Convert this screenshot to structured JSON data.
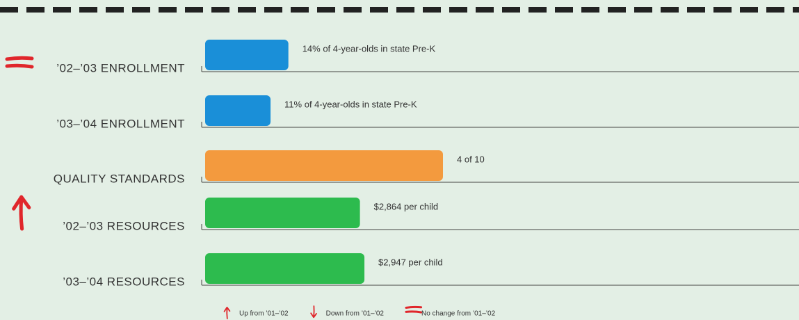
{
  "chart_data": [
    {
      "type": "bar",
      "categories": [
        "’02–’03 ENROLLMENT"
      ],
      "values": [
        14
      ],
      "value_labels": [
        "14% of 4-year-olds in state Pre-K"
      ],
      "color": "#1a8fd8",
      "xlim": [
        0,
        100
      ],
      "trend": "same"
    },
    {
      "type": "bar",
      "categories": [
        "’03–’04 ENROLLMENT"
      ],
      "values": [
        11
      ],
      "value_labels": [
        "11% of 4-year-olds in state Pre-K"
      ],
      "color": "#1a8fd8",
      "xlim": [
        0,
        100
      ]
    },
    {
      "type": "bar",
      "categories": [
        "QUALITY STANDARDS"
      ],
      "values": [
        4
      ],
      "value_labels": [
        "4 of 10"
      ],
      "color": "#f39a3e",
      "xlim": [
        0,
        10
      ]
    },
    {
      "type": "bar",
      "categories": [
        "’02–’03 RESOURCES"
      ],
      "values": [
        2864
      ],
      "value_labels": [
        "$2,864 per child"
      ],
      "color": "#2dbb4e",
      "xlim": [
        0,
        11000
      ],
      "trend": "up"
    },
    {
      "type": "bar",
      "categories": [
        "’03–’04 RESOURCES"
      ],
      "values": [
        2947
      ],
      "value_labels": [
        "$2,947 per child"
      ],
      "color": "#2dbb4e",
      "xlim": [
        0,
        11000
      ]
    }
  ],
  "legend": [
    {
      "icon": "up",
      "label": "Up from ’01–’02"
    },
    {
      "icon": "down",
      "label": "Down from ’01–’02"
    },
    {
      "icon": "same",
      "label": "No change from ’01–’02"
    }
  ]
}
